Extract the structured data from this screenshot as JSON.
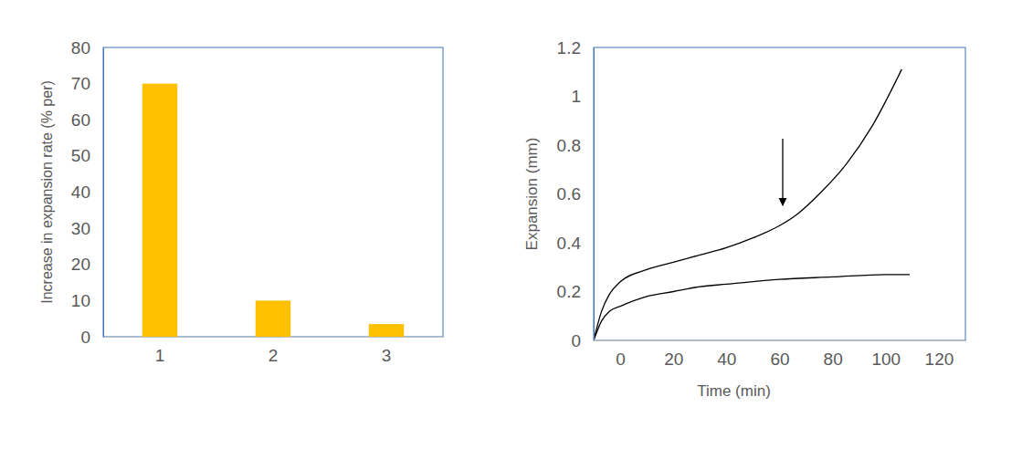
{
  "chart_data": [
    {
      "type": "bar",
      "y_label": "Increase in expansion rate (% per)",
      "categories": [
        "1",
        "2",
        "3"
      ],
      "values": [
        70,
        10,
        3.5
      ],
      "color": "#ffc000",
      "ylim": [
        0,
        80
      ],
      "yticks": [
        0,
        10,
        20,
        30,
        40,
        50,
        60,
        70,
        80
      ]
    },
    {
      "type": "line",
      "x_label": "Time (min)",
      "y_label": "Expansion (mm)",
      "xlim": [
        -10,
        130
      ],
      "xticks": [
        0,
        20,
        40,
        60,
        80,
        100,
        120
      ],
      "ylim": [
        0,
        1.2
      ],
      "yticks": [
        0,
        0.2,
        0.4,
        0.6,
        0.8,
        1,
        1.2
      ],
      "series": [
        {
          "color": "#000000",
          "x": [
            -10,
            -7,
            -4,
            0,
            10,
            20,
            30,
            40,
            50,
            60,
            67,
            75,
            85,
            95,
            106
          ],
          "values": [
            0,
            0.12,
            0.19,
            0.24,
            0.29,
            0.32,
            0.35,
            0.38,
            0.42,
            0.47,
            0.52,
            0.6,
            0.72,
            0.88,
            1.11
          ]
        },
        {
          "color": "#000000",
          "x": [
            -10,
            -7,
            -4,
            0,
            10,
            20,
            30,
            40,
            60,
            80,
            100,
            109
          ],
          "values": [
            0,
            0.08,
            0.12,
            0.14,
            0.18,
            0.2,
            0.22,
            0.23,
            0.25,
            0.26,
            0.27,
            0.27
          ]
        }
      ]
    }
  ]
}
